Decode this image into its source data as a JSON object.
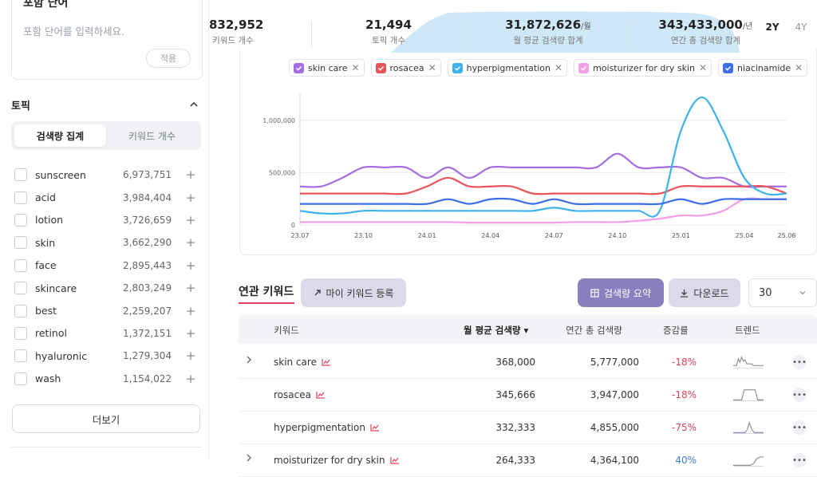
{
  "sidebar": {
    "include_title": "포함 단어",
    "include_placeholder": "포함 단어를 입력하세요.",
    "apply_label": "적용",
    "topic_title": "토픽",
    "segment": [
      "검색량 집계",
      "키워드 개수"
    ],
    "topics": [
      {
        "name": "sunscreen",
        "value": "6,973,751"
      },
      {
        "name": "acid",
        "value": "3,984,404"
      },
      {
        "name": "lotion",
        "value": "3,726,659"
      },
      {
        "name": "skin",
        "value": "3,662,290"
      },
      {
        "name": "face",
        "value": "2,895,443"
      },
      {
        "name": "skincare",
        "value": "2,803,249"
      },
      {
        "name": "best",
        "value": "2,259,207"
      },
      {
        "name": "retinol",
        "value": "1,372,151"
      },
      {
        "name": "hyaluronic",
        "value": "1,279,304"
      },
      {
        "name": "wash",
        "value": "1,154,022"
      }
    ],
    "more_label": "더보기"
  },
  "stats": [
    {
      "value": "832,952",
      "unit": "",
      "label": "키워드 개수"
    },
    {
      "value": "21,494",
      "unit": "",
      "label": "토픽 개수"
    },
    {
      "value": "31,872,626",
      "unit": "/월",
      "label": "월 평균 검색량 합계"
    },
    {
      "value": "343,433,000",
      "unit": "/년",
      "label": "연간 총 검색량 합계"
    }
  ],
  "period": [
    "2Y",
    "4Y"
  ],
  "chips": [
    {
      "label": "skin care",
      "color": "#a56ee0"
    },
    {
      "label": "rosacea",
      "color": "#e8545a"
    },
    {
      "label": "hyperpigmentation",
      "color": "#3db2ea"
    },
    {
      "label": "moisturizer for dry skin",
      "color": "#f49de8"
    },
    {
      "label": "niacinamide",
      "color": "#3d6ee8"
    }
  ],
  "chart_data": {
    "type": "line",
    "x": [
      "23.07",
      "23.08",
      "23.09",
      "23.10",
      "23.11",
      "23.12",
      "24.01",
      "24.02",
      "24.03",
      "24.04",
      "24.05",
      "24.06",
      "24.07",
      "24.08",
      "24.09",
      "24.10",
      "24.11",
      "24.12",
      "25.01",
      "25.02",
      "25.03",
      "25.04",
      "25.05",
      "25.06"
    ],
    "x_ticks": [
      "23.07",
      "23.10",
      "24.01",
      "24.04",
      "24.07",
      "24.10",
      "25.01",
      "25.04",
      "25.06"
    ],
    "y_ticks": [
      "0",
      "500,000",
      "1,000,000"
    ],
    "ylim": [
      0,
      1250000
    ],
    "series": [
      {
        "name": "skin care",
        "color": "#a56ee0",
        "values": [
          368000,
          368000,
          450000,
          550000,
          550000,
          550000,
          450000,
          550000,
          450000,
          550000,
          550000,
          550000,
          550000,
          550000,
          550000,
          680000,
          550000,
          550000,
          550000,
          450000,
          450000,
          368000,
          368000,
          368000
        ]
      },
      {
        "name": "rosacea",
        "color": "#e8545a",
        "values": [
          300000,
          300000,
          300000,
          300000,
          300000,
          300000,
          368000,
          450000,
          368000,
          368000,
          368000,
          300000,
          300000,
          300000,
          300000,
          300000,
          300000,
          300000,
          368000,
          368000,
          368000,
          368000,
          368000,
          300000
        ]
      },
      {
        "name": "hyperpigmentation",
        "color": "#3db2ea",
        "values": [
          135000,
          110000,
          110000,
          135000,
          135000,
          135000,
          135000,
          135000,
          135000,
          135000,
          135000,
          135000,
          165000,
          135000,
          135000,
          135000,
          135000,
          135000,
          900000,
          1220000,
          900000,
          450000,
          300000,
          300000
        ]
      },
      {
        "name": "moisturizer for dry skin",
        "color": "#f49de8",
        "values": [
          27000,
          27000,
          27000,
          27000,
          27000,
          27000,
          27000,
          27000,
          22000,
          22000,
          22000,
          22000,
          22000,
          27000,
          27000,
          27000,
          40000,
          60000,
          90000,
          90000,
          135000,
          246000,
          246000,
          246000
        ]
      },
      {
        "name": "niacinamide",
        "color": "#3d6ee8",
        "values": [
          201000,
          201000,
          201000,
          201000,
          201000,
          201000,
          201000,
          246000,
          201000,
          246000,
          246000,
          201000,
          246000,
          201000,
          201000,
          201000,
          201000,
          201000,
          246000,
          201000,
          246000,
          246000,
          246000,
          246000
        ]
      }
    ]
  },
  "keywords": {
    "tab_label": "연관 키워드",
    "my_keyword_label": "마이 키워드 등록",
    "summary_label": "검색량 요약",
    "download_label": "다운로드",
    "page_size": "30",
    "headers": [
      "키워드",
      "월 평균 검색량 ▾",
      "연간 총 검색량",
      "증감률",
      "트렌드"
    ],
    "rows": [
      {
        "keyword": "skin care",
        "monthly": "368,000",
        "annual": "5,777,000",
        "change": "-18%",
        "dir": "neg"
      },
      {
        "keyword": "rosacea",
        "monthly": "345,666",
        "annual": "3,947,000",
        "change": "-18%",
        "dir": "neg"
      },
      {
        "keyword": "hyperpigmentation",
        "monthly": "332,333",
        "annual": "4,855,000",
        "change": "-75%",
        "dir": "neg"
      },
      {
        "keyword": "moisturizer for dry skin",
        "monthly": "264,333",
        "annual": "4,364,100",
        "change": "40%",
        "dir": "pos"
      }
    ]
  }
}
